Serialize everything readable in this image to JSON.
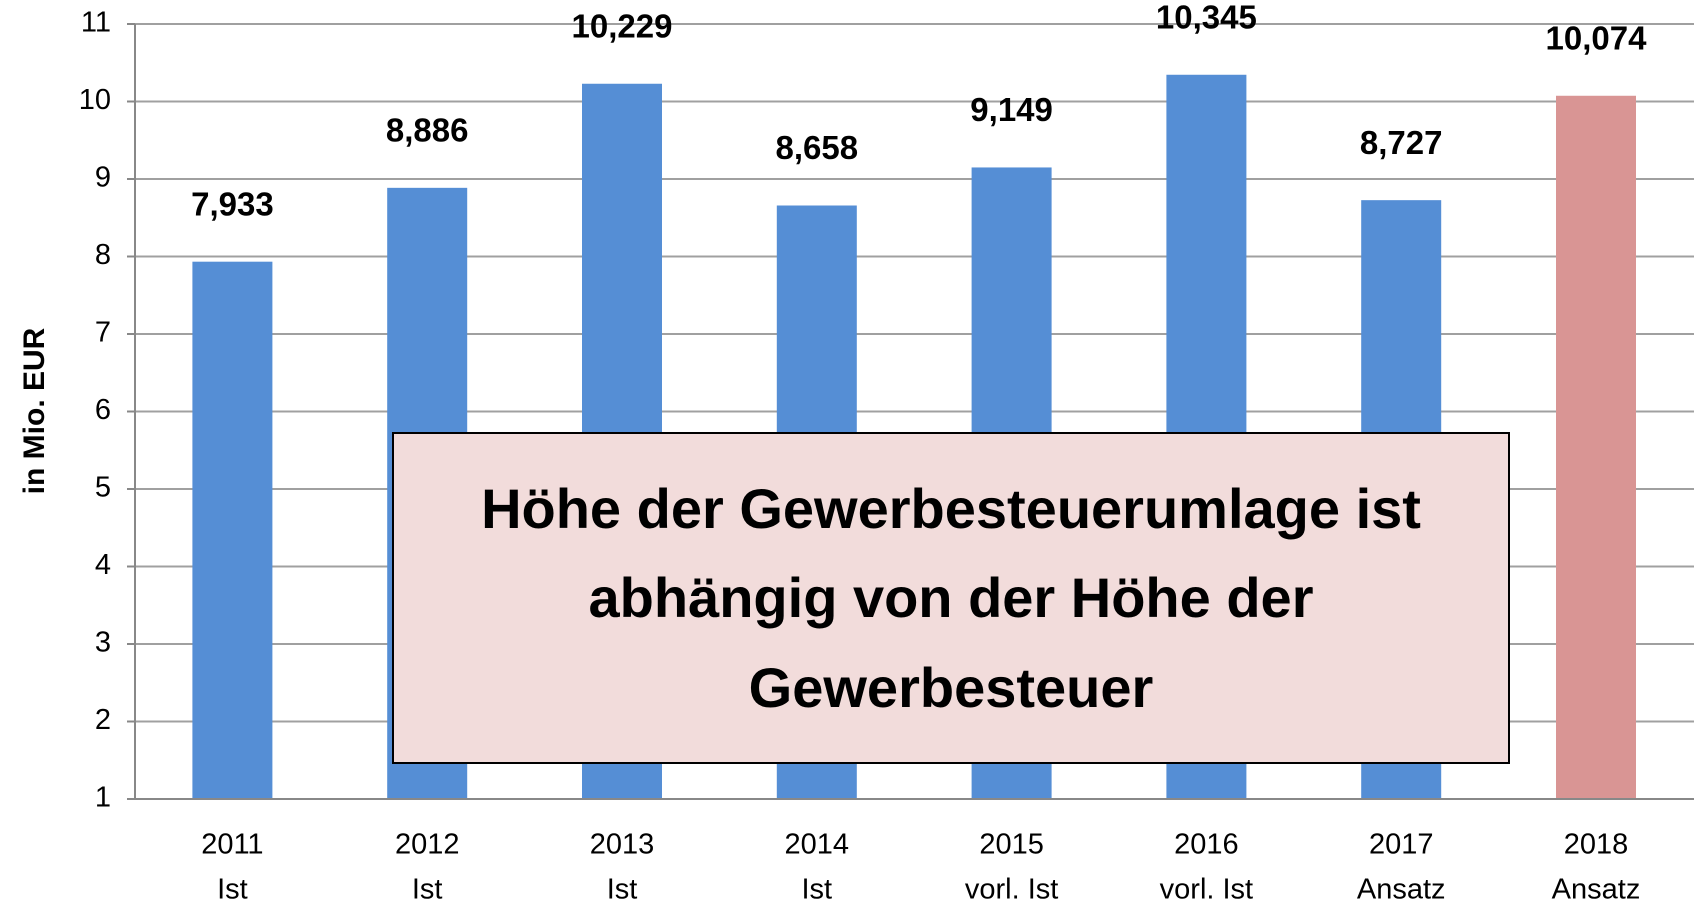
{
  "chart_data": {
    "type": "bar",
    "y_label": "in Mio. EUR",
    "annotation": "Höhe der Gewerbesteuerumlage ist abhängig von der Höhe der Gewerbesteuer",
    "categories": [
      [
        "2011",
        "Ist"
      ],
      [
        "2012",
        "Ist"
      ],
      [
        "2013",
        "Ist"
      ],
      [
        "2014",
        "Ist"
      ],
      [
        "2015",
        "vorl. Ist"
      ],
      [
        "2016",
        "vorl. Ist"
      ],
      [
        "2017",
        "Ansatz"
      ],
      [
        "2018",
        "Ansatz"
      ]
    ],
    "values": [
      7.933,
      8.886,
      10.229,
      8.658,
      9.149,
      10.345,
      8.727,
      10.074
    ],
    "value_labels": [
      "7,933",
      "8,886",
      "10,229",
      "8,658",
      "9,149",
      "10,345",
      "8,727",
      "10,074"
    ],
    "colors": [
      "#558ed5",
      "#558ed5",
      "#558ed5",
      "#558ed5",
      "#558ed5",
      "#558ed5",
      "#558ed5",
      "#d99594"
    ],
    "ylim": [
      1,
      11
    ],
    "yticks": [
      1,
      2,
      3,
      4,
      5,
      6,
      7,
      8,
      9,
      10,
      11
    ],
    "grid": true
  }
}
